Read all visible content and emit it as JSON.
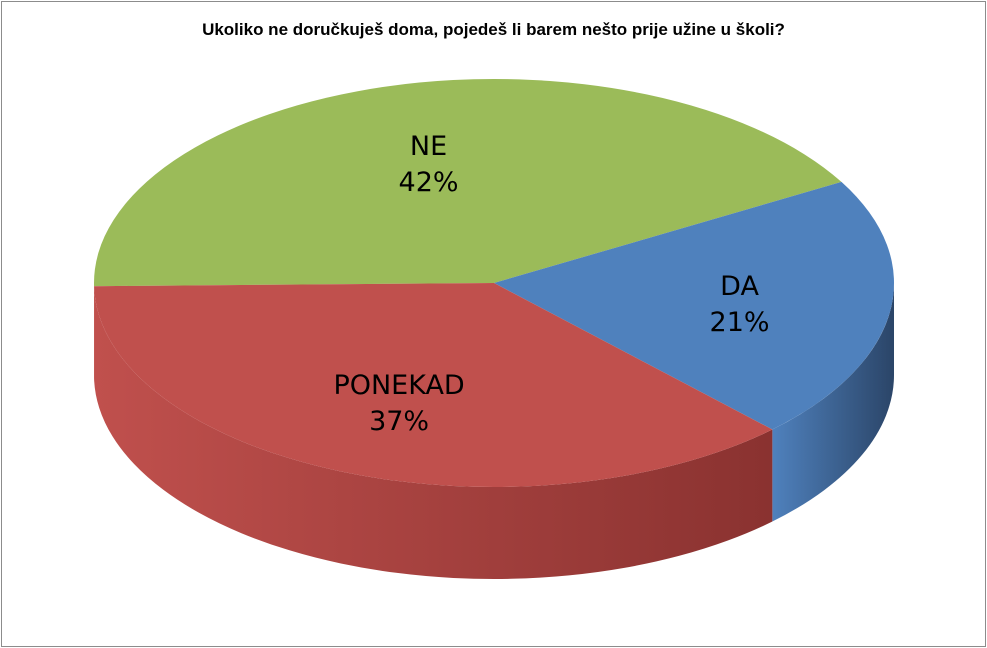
{
  "chart_data": {
    "type": "pie",
    "title": "Ukoliko ne doručkuješ doma, pojedeš li barem nešto prije užine u školi?",
    "slices": [
      {
        "label": "NE",
        "percent_label": "42%",
        "value": 42,
        "color": "#9bbb59",
        "side_color": "#6f8a3a"
      },
      {
        "label": "DA",
        "percent_label": "21%",
        "value": 21,
        "color": "#4f81bd",
        "side_color": "#2b4568"
      },
      {
        "label": "PONEKAD",
        "percent_label": "37%",
        "value": 37,
        "color": "#c0504d",
        "side_color": "#8a3230"
      }
    ],
    "legend": "none"
  }
}
